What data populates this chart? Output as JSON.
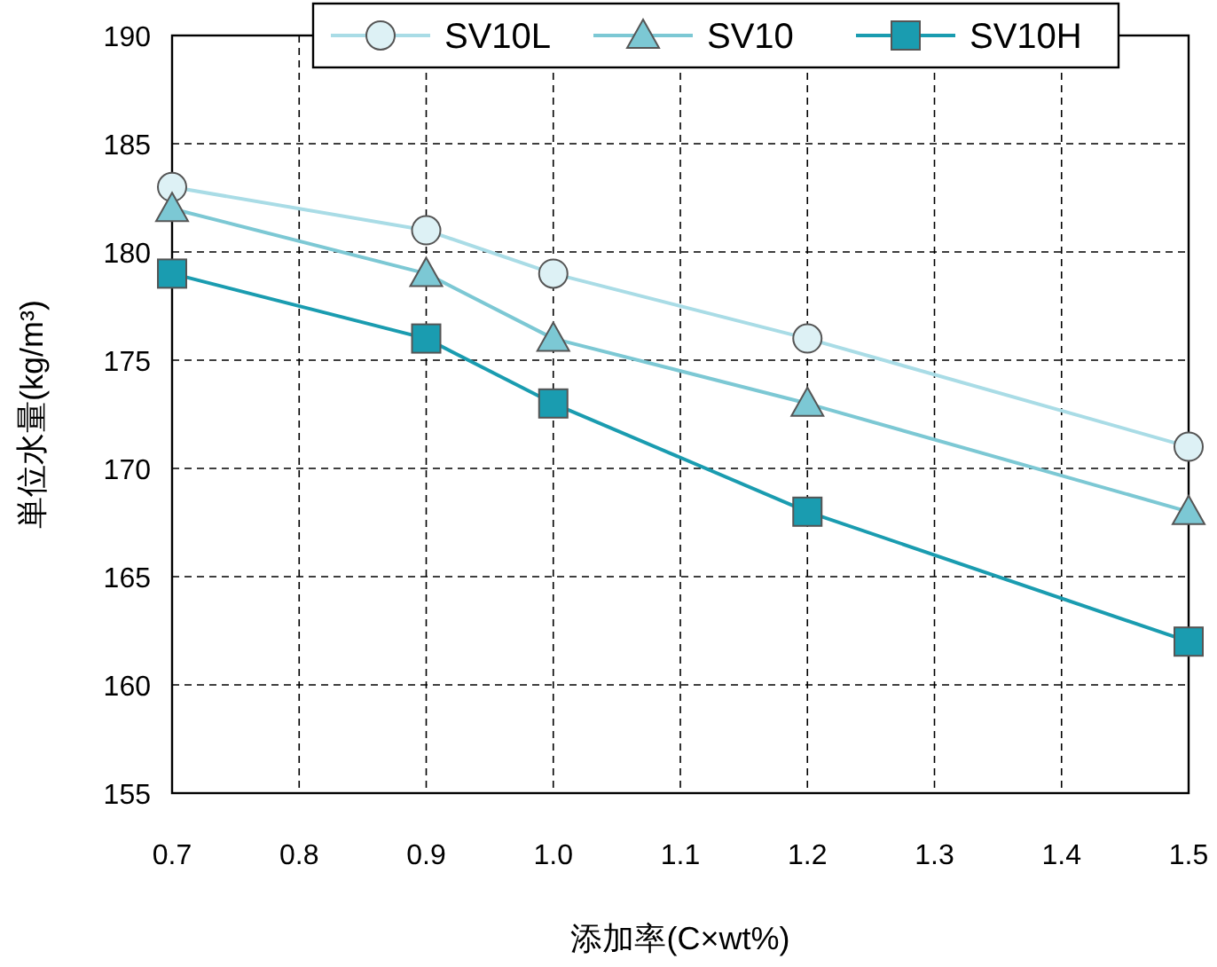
{
  "chart_data": {
    "type": "line",
    "xlabel": "添加率(C×wt%)",
    "ylabel": "単位水量(kg/m³)",
    "x": [
      0.7,
      0.9,
      1.0,
      1.2,
      1.5
    ],
    "series": [
      {
        "name": "SV10L",
        "color": "#a9dce6",
        "marker": "circle",
        "values": [
          183,
          181,
          179,
          176,
          171
        ]
      },
      {
        "name": "SV10",
        "color": "#7cc8d4",
        "marker": "triangle",
        "values": [
          182,
          179,
          176,
          173,
          168
        ]
      },
      {
        "name": "SV10H",
        "color": "#1a9cb0",
        "marker": "square",
        "values": [
          179,
          176,
          173,
          168,
          162
        ]
      }
    ],
    "xlim": [
      0.7,
      1.5
    ],
    "xticks": [
      0.7,
      0.8,
      0.9,
      {
        "value": 1,
        "label": "1.0"
      },
      1.1,
      1.2,
      1.3,
      1.4,
      1.5
    ],
    "ylim": [
      155,
      190
    ],
    "yticks": [
      155,
      160,
      165,
      170,
      175,
      180,
      185,
      190
    ],
    "grid": true,
    "legend": "top",
    "line_style": "solid"
  }
}
